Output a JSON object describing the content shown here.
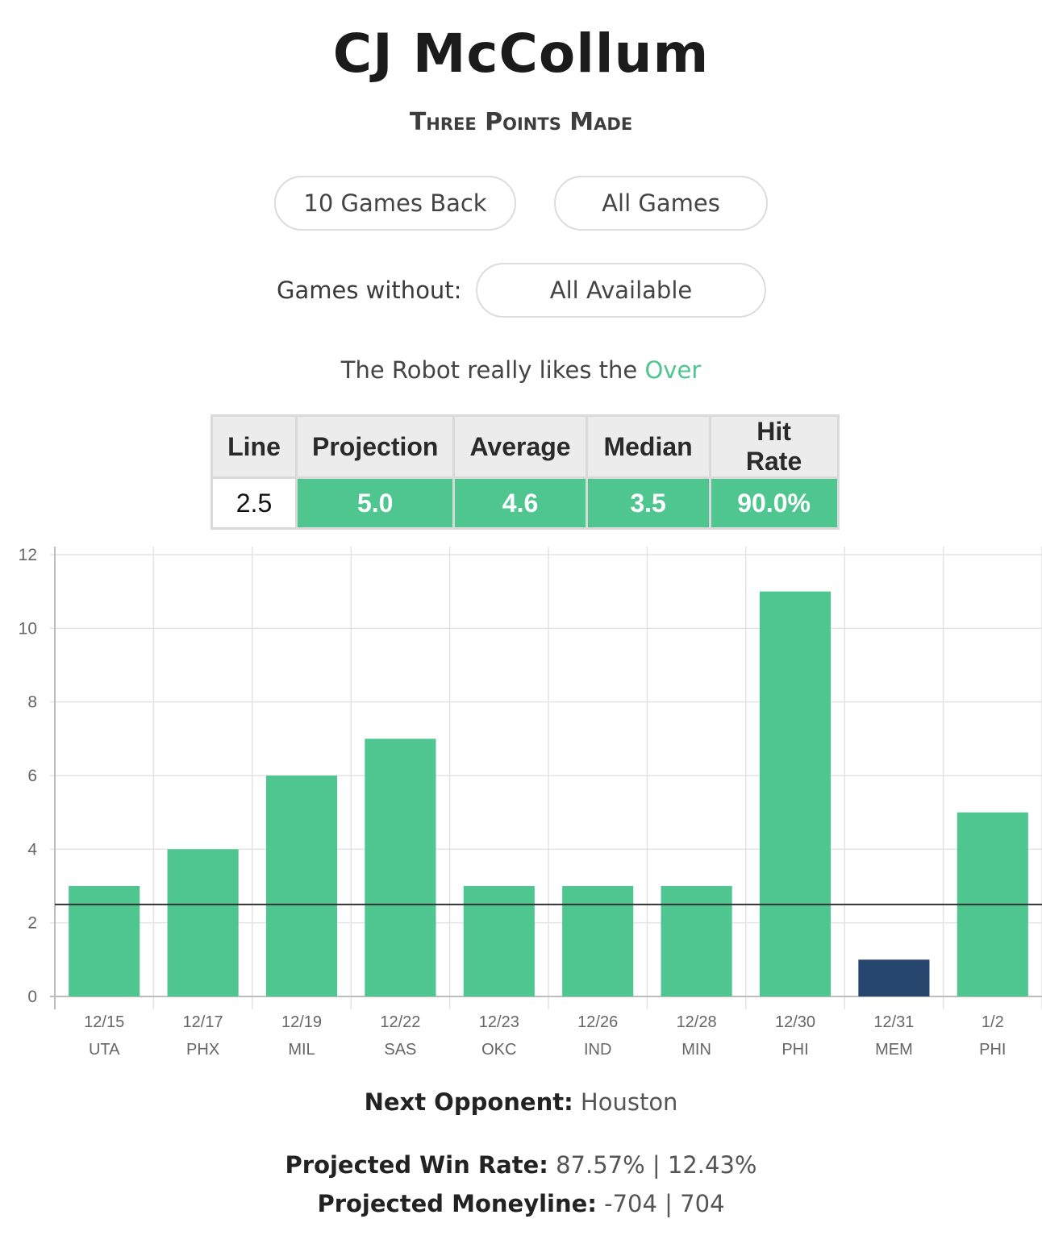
{
  "header": {
    "title": "CJ McCollum",
    "subtitle": "Three Points Made"
  },
  "filters": {
    "games_back_label": "10 Games Back",
    "all_games_label": "All Games",
    "without_label": "Games without:",
    "without_value": "All Available"
  },
  "robot": {
    "text": "The Robot really likes the",
    "pick": "Over"
  },
  "stats": {
    "headers": [
      "Line",
      "Projection",
      "Average",
      "Median",
      "Hit Rate"
    ],
    "values": [
      "2.5",
      "5.0",
      "4.6",
      "3.5",
      "90.0%"
    ]
  },
  "chart_data": {
    "type": "bar",
    "categories": [
      "12/15",
      "12/17",
      "12/19",
      "12/22",
      "12/23",
      "12/26",
      "12/28",
      "12/30",
      "12/31",
      "1/2"
    ],
    "opponents": [
      "UTA",
      "PHX",
      "MIL",
      "SAS",
      "OKC",
      "IND",
      "MIN",
      "PHI",
      "MEM",
      "PHI"
    ],
    "values": [
      3,
      4,
      6,
      7,
      3,
      3,
      3,
      11,
      1,
      5
    ],
    "line": 2.5,
    "ylim": [
      0,
      12
    ],
    "yticks": [
      0,
      2,
      4,
      6,
      8,
      10,
      12
    ],
    "grid": true,
    "colors": {
      "over": "#4fc68f",
      "under": "#26466d",
      "line": "#333333"
    }
  },
  "footer": {
    "next_opponent_label": "Next Opponent:",
    "next_opponent": "Houston",
    "win_rate_label": "Projected Win Rate:",
    "win_rate": "87.57% | 12.43%",
    "moneyline_label": "Projected Moneyline:",
    "moneyline": "-704 | 704"
  }
}
